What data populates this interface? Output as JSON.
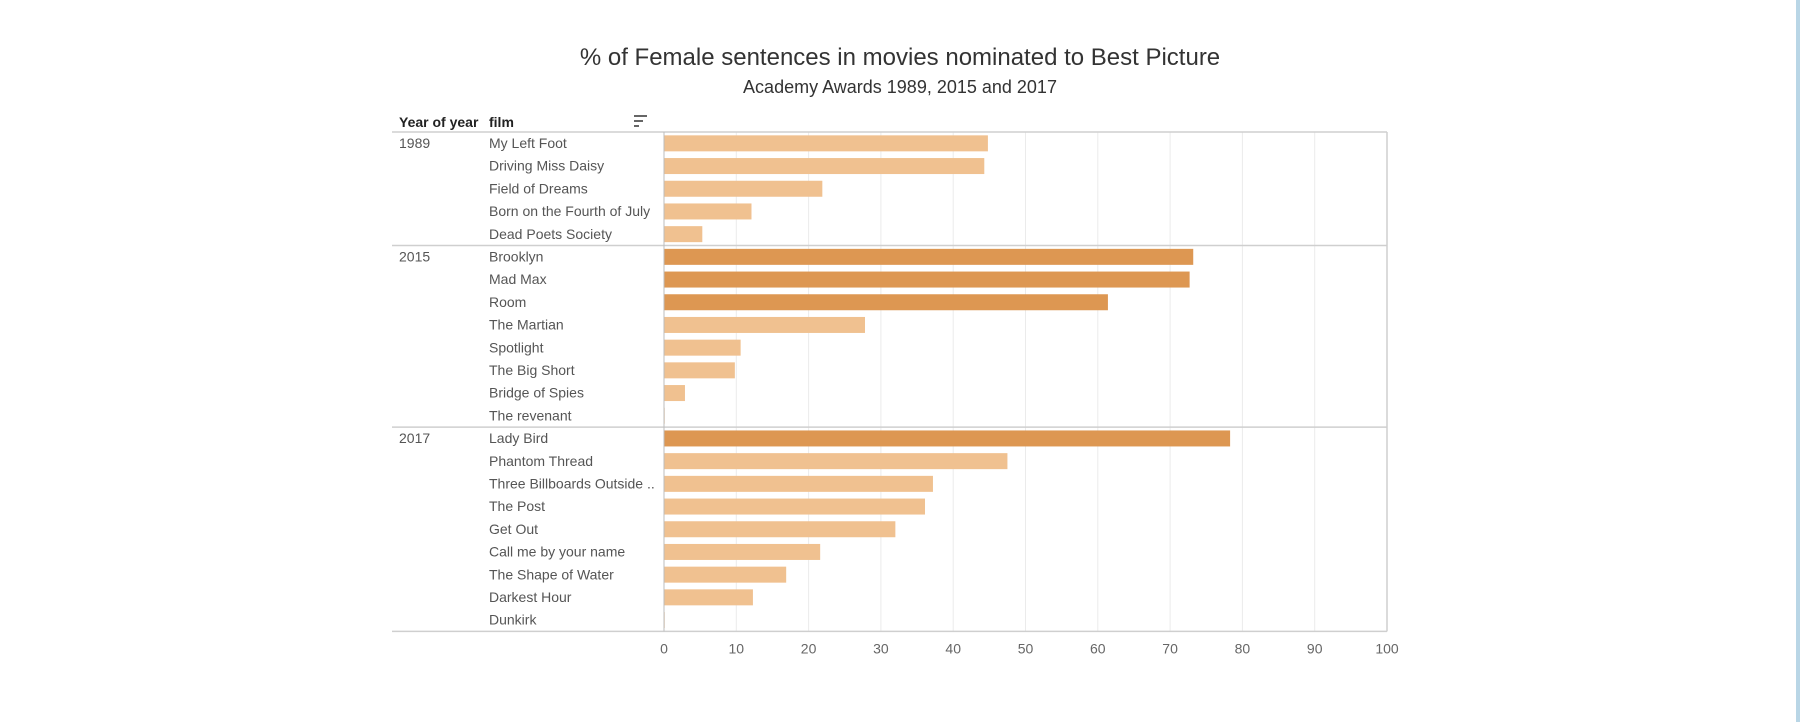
{
  "title": "% of Female sentences in movies nominated to Best Picture",
  "subtitle": "Academy Awards 1989, 2015 and 2017",
  "headers": {
    "year": "Year of year",
    "film": "film"
  },
  "icons": {
    "sort": "sort-icon"
  },
  "colors": {
    "light": "#f0c190",
    "dark": "#dd9752",
    "grid": "#ebebeb",
    "divider": "#cfcfcf",
    "axis": "#bdbdbd",
    "edge": "#b9d6e6"
  },
  "chart_data": {
    "type": "bar",
    "orientation": "horizontal",
    "title": "% of Female sentences in movies nominated to Best Picture",
    "subtitle": "Academy Awards 1989, 2015 and 2017",
    "xlim": [
      0,
      100
    ],
    "xticks": [
      0,
      10,
      20,
      30,
      40,
      50,
      60,
      70,
      80,
      90,
      100
    ],
    "grid": true,
    "dark_threshold": 60,
    "groups": [
      {
        "year": "1989",
        "films": [
          {
            "name": "My Left Foot",
            "value": 44.8
          },
          {
            "name": "Driving Miss Daisy",
            "value": 44.3
          },
          {
            "name": "Field of Dreams",
            "value": 21.9
          },
          {
            "name": "Born on the Fourth of July",
            "value": 12.1
          },
          {
            "name": "Dead Poets Society",
            "value": 5.3
          }
        ]
      },
      {
        "year": "2015",
        "films": [
          {
            "name": "Brooklyn",
            "value": 73.2
          },
          {
            "name": "Mad Max",
            "value": 72.7
          },
          {
            "name": "Room",
            "value": 61.4
          },
          {
            "name": "The Martian",
            "value": 27.8
          },
          {
            "name": "Spotlight",
            "value": 10.6
          },
          {
            "name": "The Big Short",
            "value": 9.8
          },
          {
            "name": "Bridge of Spies",
            "value": 2.9
          },
          {
            "name": "The revenant",
            "value": 0.1
          }
        ]
      },
      {
        "year": "2017",
        "films": [
          {
            "name": "Lady Bird",
            "value": 78.3
          },
          {
            "name": "Phantom Thread",
            "value": 47.5
          },
          {
            "name": "Three Billboards Outside ..",
            "value": 37.2
          },
          {
            "name": "The Post",
            "value": 36.1
          },
          {
            "name": "Get Out",
            "value": 32.0
          },
          {
            "name": "Call me by your name",
            "value": 21.6
          },
          {
            "name": "The Shape of Water",
            "value": 16.9
          },
          {
            "name": "Darkest Hour",
            "value": 12.3
          },
          {
            "name": "Dunkirk",
            "value": 0.1
          }
        ]
      }
    ]
  }
}
